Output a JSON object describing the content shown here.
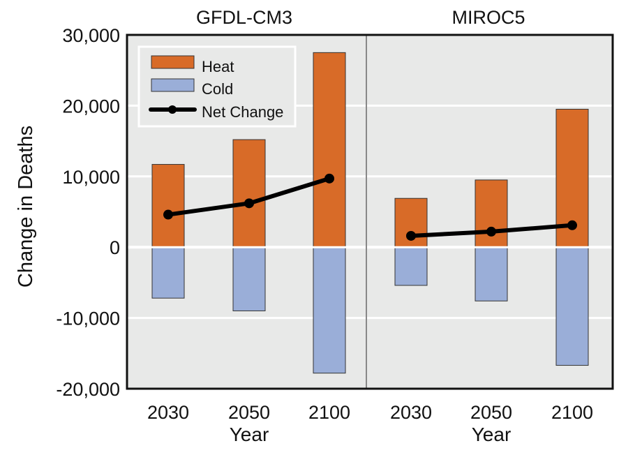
{
  "chart_data": {
    "type": "bar",
    "ylabel": "Change in Deaths",
    "xlabel": "Year",
    "ylim": [
      -20000,
      30000
    ],
    "yticks": [
      30000,
      20000,
      10000,
      0,
      -10000,
      -20000
    ],
    "ytick_labels": [
      "30,000",
      "20,000",
      "10,000",
      "0",
      "-10,000",
      "-20,000"
    ],
    "grid": true,
    "legend": {
      "placement": "top-left",
      "entries": [
        "Heat",
        "Cold",
        "Net Change"
      ]
    },
    "colors": {
      "heat": "#d86b28",
      "cold": "#9aaed8",
      "net": "#000000",
      "background": "#e8e9e8"
    },
    "categories": [
      "2030",
      "2050",
      "2100"
    ],
    "panels": [
      {
        "title": "GFDL-CM3",
        "series": [
          {
            "name": "Heat",
            "values": [
              11700,
              15200,
              27500
            ]
          },
          {
            "name": "Cold",
            "values": [
              -7200,
              -9000,
              -17800
            ]
          },
          {
            "name": "Net Change",
            "values": [
              4600,
              6200,
              9700
            ]
          }
        ]
      },
      {
        "title": "MIROC5",
        "series": [
          {
            "name": "Heat",
            "values": [
              6900,
              9500,
              19500
            ]
          },
          {
            "name": "Cold",
            "values": [
              -5400,
              -7600,
              -16700
            ]
          },
          {
            "name": "Net Change",
            "values": [
              1600,
              2200,
              3100
            ]
          }
        ]
      }
    ]
  }
}
